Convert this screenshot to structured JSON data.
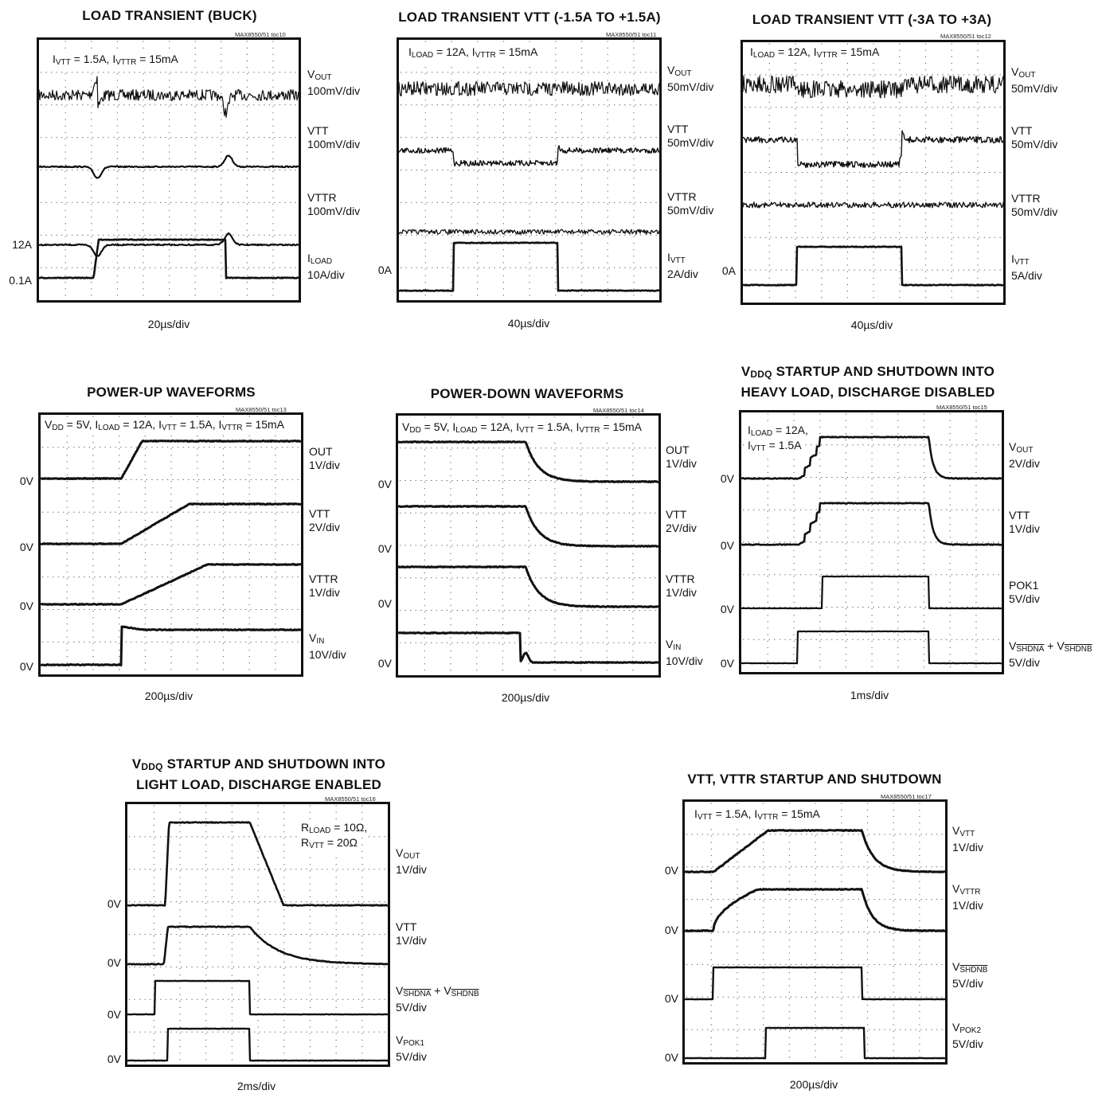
{
  "part_id": "MAX8550/51",
  "panels": [
    {
      "id": "toc10",
      "title": "LOAD TRANSIENT (BUCK)",
      "toc_label": "MAX8550/51 toc10",
      "annotation": "I_VTT = 1.5A, I_VTTR = 15mA",
      "timebase": "20µs/div",
      "channels": [
        {
          "name": "V_OUT",
          "scale": "100mV/div"
        },
        {
          "name": "VTT",
          "scale": "100mV/div"
        },
        {
          "name": "VTTR",
          "scale": "100mV/div"
        },
        {
          "name": "I_LOAD",
          "scale": "10A/div"
        }
      ],
      "level_labels": [
        "12A",
        "0.1A"
      ]
    },
    {
      "id": "toc11",
      "title": "LOAD TRANSIENT VTT (-1.5A TO +1.5A)",
      "toc_label": "MAX8550/51 toc11",
      "annotation": "I_LOAD = 12A, I_VTTR = 15mA",
      "timebase": "40µs/div",
      "channels": [
        {
          "name": "V_OUT",
          "scale": "50mV/div"
        },
        {
          "name": "VTT",
          "scale": "50mV/div"
        },
        {
          "name": "VTTR",
          "scale": "50mV/div"
        },
        {
          "name": "I_VTT",
          "scale": "2A/div"
        }
      ],
      "level_labels": [
        "0A"
      ]
    },
    {
      "id": "toc12",
      "title": "LOAD TRANSIENT VTT (-3A TO +3A)",
      "toc_label": "MAX8550/51 toc12",
      "annotation": "I_LOAD = 12A, I_VTTR = 15mA",
      "timebase": "40µs/div",
      "channels": [
        {
          "name": "V_OUT",
          "scale": "50mV/div"
        },
        {
          "name": "VTT",
          "scale": "50mV/div"
        },
        {
          "name": "VTTR",
          "scale": "50mV/div"
        },
        {
          "name": "I_VTT",
          "scale": "5A/div"
        }
      ],
      "level_labels": [
        "0A"
      ]
    },
    {
      "id": "toc13",
      "title": "POWER-UP WAVEFORMS",
      "toc_label": "MAX8550/51 toc13",
      "annotation": "V_DD = 5V, I_LOAD = 12A, I_VTT = 1.5A, I_VTTR = 15mA",
      "timebase": "200µs/div",
      "channels": [
        {
          "name": "OUT",
          "scale": "1V/div"
        },
        {
          "name": "VTT",
          "scale": "2V/div"
        },
        {
          "name": "VTTR",
          "scale": "1V/div"
        },
        {
          "name": "V_IN",
          "scale": "10V/div"
        }
      ],
      "level_labels": [
        "0V",
        "0V",
        "0V",
        "0V"
      ]
    },
    {
      "id": "toc14",
      "title": "POWER-DOWN WAVEFORMS",
      "toc_label": "MAX8550/51 toc14",
      "annotation": "V_DD = 5V, I_LOAD = 12A, I_VTT = 1.5A, I_VTTR = 15mA",
      "timebase": "200µs/div",
      "channels": [
        {
          "name": "OUT",
          "scale": "1V/div"
        },
        {
          "name": "VTT",
          "scale": "2V/div"
        },
        {
          "name": "VTTR",
          "scale": "1V/div"
        },
        {
          "name": "V_IN",
          "scale": "10V/div"
        }
      ],
      "level_labels": [
        "0V",
        "0V",
        "0V",
        "0V"
      ]
    },
    {
      "id": "toc15",
      "title_line1": "V_DDQ STARTUP AND SHUTDOWN INTO",
      "title_line2": "HEAVY LOAD, DISCHARGE DISABLED",
      "toc_label": "MAX8550/51 toc15",
      "annotation_line1": "I_LOAD = 12A,",
      "annotation_line2": "I_VTT = 1.5A",
      "timebase": "1ms/div",
      "channels": [
        {
          "name": "V_OUT",
          "scale": "2V/div"
        },
        {
          "name": "VTT",
          "scale": "1V/div"
        },
        {
          "name": "POK1",
          "scale": "5V/div"
        },
        {
          "name": "V_SHDNA + V_SHDNB",
          "scale": "5V/div"
        }
      ],
      "level_labels": [
        "0V",
        "0V",
        "0V",
        "0V"
      ]
    },
    {
      "id": "toc16",
      "title_line1": "V_DDQ STARTUP AND SHUTDOWN INTO",
      "title_line2": "LIGHT LOAD, DISCHARGE ENABLED",
      "toc_label": "MAX8550/51 toc16",
      "annotation_line1": "R_LOAD = 10Ω,",
      "annotation_line2": "R_VTT = 20Ω",
      "timebase": "2ms/div",
      "channels": [
        {
          "name": "V_OUT",
          "scale": "1V/div"
        },
        {
          "name": "VTT",
          "scale": "1V/div"
        },
        {
          "name": "V_SHDNA + V_SHDNB",
          "scale": "5V/div"
        },
        {
          "name": "V_POK1",
          "scale": "5V/div"
        }
      ],
      "level_labels": [
        "0V",
        "0V",
        "0V",
        "0V"
      ]
    },
    {
      "id": "toc17",
      "title": "VTT, VTTR STARTUP AND SHUTDOWN",
      "toc_label": "MAX8550/51 toc17",
      "annotation": "I_VTT = 1.5A, I_VTTR = 15mA",
      "timebase": "200µs/div",
      "channels": [
        {
          "name": "V_VTT",
          "scale": "1V/div"
        },
        {
          "name": "V_VTTR",
          "scale": "1V/div"
        },
        {
          "name": "V_SHDNB",
          "scale": "5V/div"
        },
        {
          "name": "V_POK2",
          "scale": "5V/div"
        }
      ],
      "level_labels": [
        "0V",
        "0V",
        "0V",
        "0V"
      ]
    }
  ],
  "chart_data": [
    {
      "type": "line",
      "panel": "toc10",
      "x_divisions": 10,
      "y_divisions": 8,
      "series": [
        {
          "name": "V_OUT",
          "shape": "dip-recover-spike",
          "noise": "high"
        },
        {
          "name": "VTT",
          "shape": "dip-recover-spike",
          "noise": "low"
        },
        {
          "name": "VTTR",
          "shape": "dip-recover-spike",
          "noise": "low"
        },
        {
          "name": "I_LOAD",
          "values_A": [
            0.1,
            12,
            0.1
          ],
          "step_times_div": [
            2.2,
            7.2
          ]
        }
      ]
    },
    {
      "type": "line",
      "panel": "toc11",
      "x_divisions": 10,
      "y_divisions": 8,
      "series": [
        {
          "name": "V_OUT",
          "shape": "steady",
          "noise": "high"
        },
        {
          "name": "VTT",
          "shape": "step-down-then-up",
          "step_times_div": [
            2.1,
            6.1
          ]
        },
        {
          "name": "VTTR",
          "shape": "steady",
          "noise": "medium"
        },
        {
          "name": "I_VTT",
          "values_A": [
            -1.5,
            1.5,
            -1.5
          ],
          "step_times_div": [
            2.1,
            6.1
          ]
        }
      ]
    },
    {
      "type": "line",
      "panel": "toc12",
      "x_divisions": 10,
      "y_divisions": 8,
      "series": [
        {
          "name": "V_OUT",
          "shape": "steady",
          "noise": "high"
        },
        {
          "name": "VTT",
          "shape": "step-down-then-up",
          "step_times_div": [
            2.1,
            6.1
          ]
        },
        {
          "name": "VTTR",
          "shape": "steady",
          "noise": "medium"
        },
        {
          "name": "I_VTT",
          "values_A": [
            -3,
            3,
            -3
          ],
          "step_times_div": [
            2.1,
            6.1
          ]
        }
      ]
    },
    {
      "type": "line",
      "panel": "toc13",
      "x_divisions": 10,
      "y_divisions": 8,
      "series": [
        {
          "name": "OUT",
          "start_div": 3.1,
          "rise_end_div": 3.9
        },
        {
          "name": "VTT",
          "start_div": 3.1,
          "rise_end_div": 5.7
        },
        {
          "name": "VTTR",
          "start_div": 3.1,
          "rise_end_div": 6.4
        },
        {
          "name": "V_IN",
          "step_div": 3.1
        }
      ]
    },
    {
      "type": "line",
      "panel": "toc14",
      "x_divisions": 10,
      "y_divisions": 8,
      "series": [
        {
          "name": "OUT",
          "fall_start_div": 4.9
        },
        {
          "name": "VTT",
          "fall_start_div": 4.9
        },
        {
          "name": "VTTR",
          "fall_start_div": 4.9
        },
        {
          "name": "V_IN",
          "fall_div": 4.7
        }
      ]
    },
    {
      "type": "line",
      "panel": "toc16",
      "x_divisions": 10,
      "y_divisions": 8,
      "series": [
        {
          "name": "V_OUT",
          "rise_div": 0.9,
          "fall_start_div": 4.2,
          "fall_end_div": 5.6
        },
        {
          "name": "VTT",
          "rise_div": 0.9,
          "fall_start_div": 4.2
        },
        {
          "name": "V_SHDNA + V_SHDNB",
          "high_from_div": 0.3,
          "high_to_div": 4.2
        },
        {
          "name": "V_POK1",
          "high_from_div": 0.9,
          "high_to_div": 4.2
        }
      ]
    },
    {
      "type": "line",
      "panel": "toc15",
      "x_divisions": 10,
      "y_divisions": 8,
      "series": [
        {
          "name": "V_OUT",
          "rise_start_div": 2.2,
          "rise_end_div": 3.1,
          "fall_start_div": 7.2
        },
        {
          "name": "VTT",
          "rise_start_div": 2.2,
          "rise_end_div": 3.1,
          "fall_start_div": 7.2
        },
        {
          "name": "POK1",
          "high_from_div": 3.1,
          "high_to_div": 7.2
        },
        {
          "name": "V_SHDNA + V_SHDNB",
          "high_from_div": 2.2,
          "high_to_div": 7.2
        }
      ]
    },
    {
      "type": "line",
      "panel": "toc17",
      "x_divisions": 10,
      "y_divisions": 8,
      "series": [
        {
          "name": "V_VTT",
          "rise_start_div": 1.1,
          "rise_end_div": 3.3,
          "fall_start_div": 6.9
        },
        {
          "name": "V_VTTR",
          "rise_start_div": 1.1,
          "rise_end_div": 3.0,
          "fall_start_div": 6.9
        },
        {
          "name": "V_SHDNB",
          "high_from_div": 1.1,
          "high_to_div": 6.9
        },
        {
          "name": "V_POK2",
          "high_from_div": 3.1,
          "high_to_div": 7.0
        }
      ]
    }
  ]
}
